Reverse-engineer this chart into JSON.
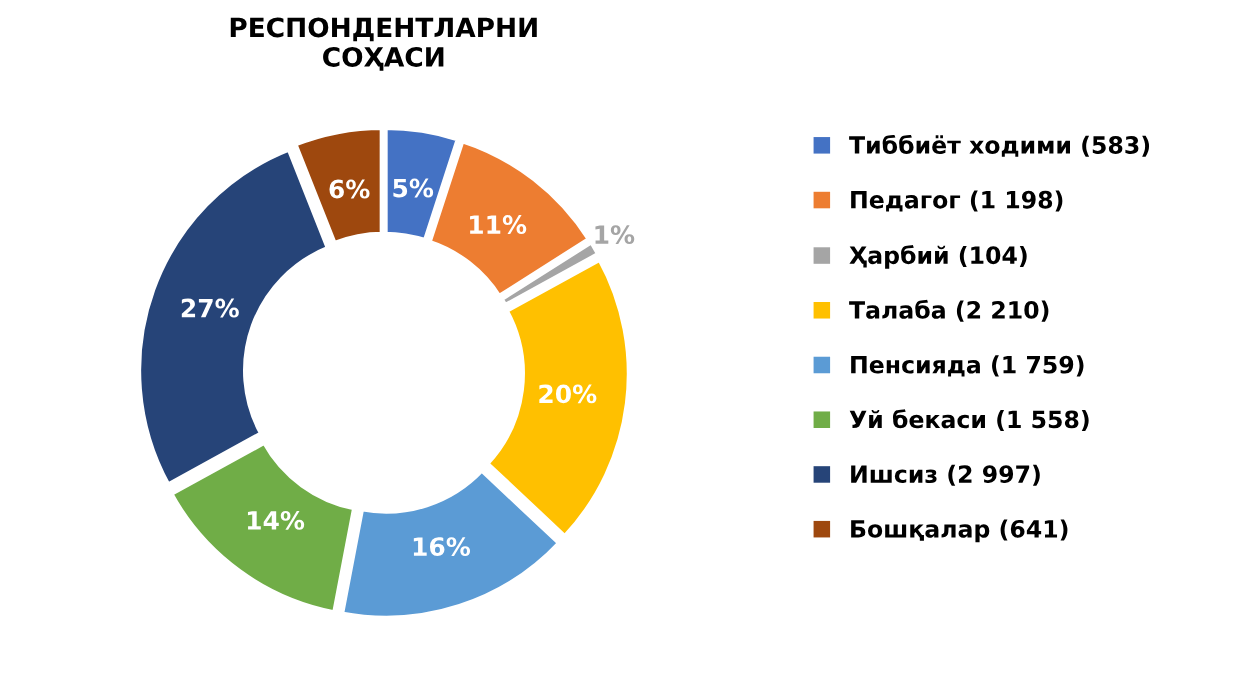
{
  "chart_data": {
    "type": "donut",
    "title": "РЕСПОНДЕНТЛАРНИ\nСОҲАСИ",
    "categories": [
      "Тиббиёт ходими (583)",
      "Педагог (1 198)",
      "Ҳарбий (104)",
      "Талаба (2 210)",
      "Пенсияда (1 759)",
      "Уй бекаси (1 558)",
      "Ишсиз (2 997)",
      "Бошқалар (641)"
    ],
    "values": [
      5,
      11,
      1,
      20,
      16,
      14,
      27,
      6
    ],
    "value_labels": [
      "5%",
      "11%",
      "1%",
      "20%",
      "16%",
      "14%",
      "27%",
      "6%"
    ],
    "colors": [
      "#4472c4",
      "#ed7d31",
      "#a5a5a5",
      "#ffc000",
      "#5b9bd5",
      "#70ad47",
      "#264478",
      "#9e480e"
    ],
    "legend": "right"
  }
}
